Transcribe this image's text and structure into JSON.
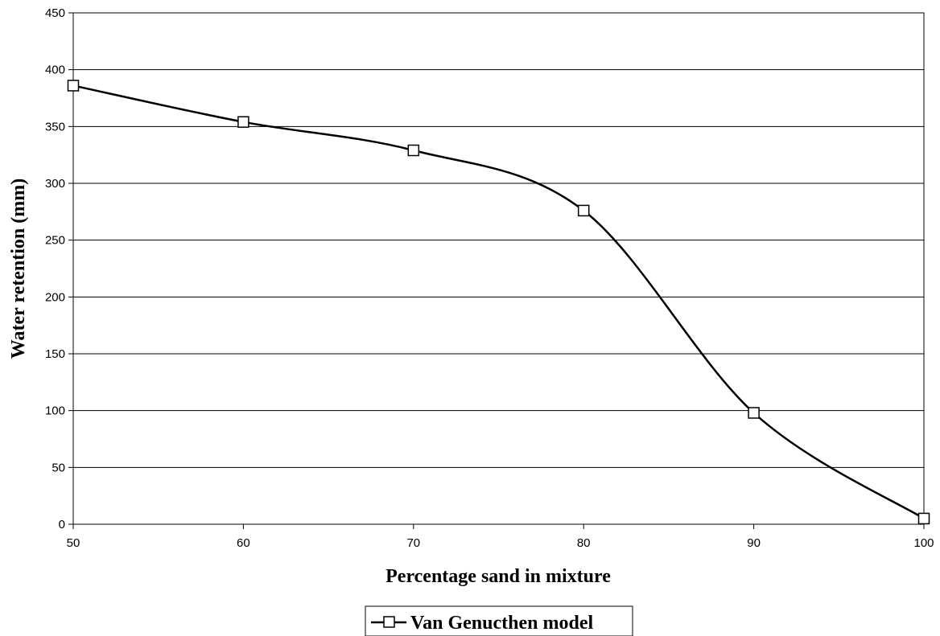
{
  "chart_data": {
    "type": "line",
    "title": "",
    "xlabel": "Percentage sand in mixture",
    "ylabel": "Water retention (mm)",
    "xlim": [
      50,
      100
    ],
    "ylim": [
      0,
      450
    ],
    "xticks": [
      50,
      60,
      70,
      80,
      90,
      100
    ],
    "yticks": [
      0,
      50,
      100,
      150,
      200,
      250,
      300,
      350,
      400,
      450
    ],
    "grid": "horizontal",
    "legend_position": "bottom",
    "series": [
      {
        "name": "Van Genucthen model",
        "color": "#000000",
        "marker": "square",
        "smooth": true,
        "x": [
          50,
          60,
          70,
          80,
          90,
          100
        ],
        "y": [
          386,
          354,
          329,
          276,
          98,
          5
        ]
      }
    ]
  }
}
